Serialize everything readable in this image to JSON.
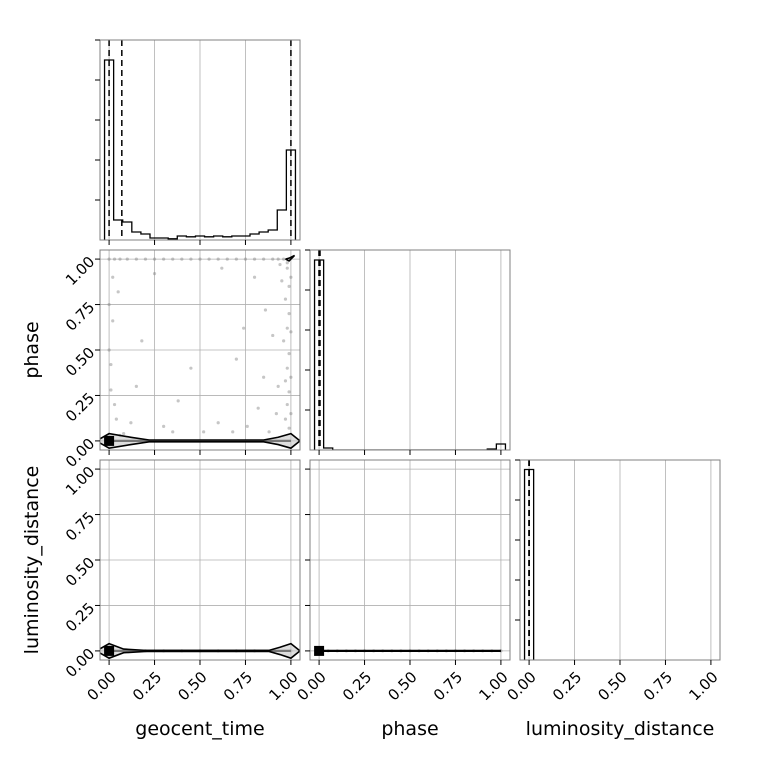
{
  "figure": {
    "style": {
      "grid": true,
      "panel_border_color": "#808080",
      "grid_color": "#b0b0b0",
      "hist_color": "#000000",
      "scatter_color": "#808080",
      "contour_fill": "#c8c8c8"
    }
  },
  "chart_data": {
    "type": "corner",
    "parameters": [
      "geocent_time",
      "phase",
      "luminosity_distance"
    ],
    "axis_labels": {
      "x": [
        "geocent_time",
        "phase",
        "luminosity_distance"
      ],
      "y": [
        "phase",
        "luminosity_distance"
      ]
    },
    "ticks": {
      "values": [
        0,
        0.25,
        0.5,
        0.75,
        1
      ],
      "labels": [
        "0.00",
        "0.25",
        "0.50",
        "0.75",
        "1.00"
      ]
    },
    "range": [
      -0.05,
      1.05
    ],
    "grid": true,
    "histograms": [
      {
        "parameter": "geocent_time",
        "bin_edges": [
          -0.025,
          0.025,
          0.075,
          0.125,
          0.175,
          0.225,
          0.275,
          0.325,
          0.375,
          0.425,
          0.475,
          0.525,
          0.575,
          0.625,
          0.675,
          0.725,
          0.775,
          0.825,
          0.875,
          0.925,
          0.975,
          1.025
        ],
        "counts": [
          45,
          5,
          4.5,
          2,
          1.5,
          0.5,
          0.5,
          0.3,
          1,
          0.8,
          1,
          0.8,
          1,
          0.8,
          1,
          1,
          1.5,
          2,
          2.5,
          7.5,
          22.5
        ],
        "ylim": [
          0,
          50
        ],
        "quantile_lines": [
          0.0,
          0.07,
          1.0
        ]
      },
      {
        "parameter": "phase",
        "bin_edges": [
          -0.025,
          0.025,
          0.075,
          0.125,
          0.175,
          0.225,
          0.275,
          0.325,
          0.375,
          0.425,
          0.475,
          0.525,
          0.575,
          0.625,
          0.675,
          0.725,
          0.775,
          0.825,
          0.875,
          0.925,
          0.975,
          1.025
        ],
        "counts": [
          95,
          1,
          0,
          0,
          0,
          0,
          0,
          0,
          0,
          0,
          0,
          0,
          0,
          0,
          0,
          0,
          0,
          0,
          0,
          0.5,
          3
        ],
        "ylim": [
          0,
          100
        ],
        "quantile_lines": [
          0.0,
          0.0,
          0.005
        ]
      },
      {
        "parameter": "luminosity_distance",
        "bin_edges": [
          -0.025,
          0.025
        ],
        "counts": [
          1
        ],
        "ylim": [
          0,
          1.05
        ],
        "quantile_lines": [
          0.0,
          0.0,
          0.0
        ]
      }
    ],
    "scatter": [
      {
        "x_parameter": "geocent_time",
        "y_parameter": "phase",
        "points": [
          [
            0.0,
            1.0
          ],
          [
            0.03,
            1.0
          ],
          [
            0.06,
            1.0
          ],
          [
            0.1,
            1.0
          ],
          [
            0.15,
            1.0
          ],
          [
            0.2,
            1.0
          ],
          [
            0.25,
            1.0
          ],
          [
            0.3,
            1.0
          ],
          [
            0.35,
            1.0
          ],
          [
            0.4,
            1.0
          ],
          [
            0.45,
            1.0
          ],
          [
            0.5,
            1.0
          ],
          [
            0.55,
            1.0
          ],
          [
            0.6,
            1.0
          ],
          [
            0.65,
            1.0
          ],
          [
            0.7,
            1.0
          ],
          [
            0.75,
            1.0
          ],
          [
            0.8,
            1.0
          ],
          [
            0.85,
            1.0
          ],
          [
            0.9,
            1.0
          ],
          [
            0.93,
            1.0
          ],
          [
            0.96,
            1.0
          ],
          [
            0.98,
            0.95
          ],
          [
            0.99,
            0.85
          ],
          [
            0.97,
            0.78
          ],
          [
            0.99,
            0.7
          ],
          [
            0.98,
            0.62
          ],
          [
            0.96,
            0.55
          ],
          [
            0.99,
            0.48
          ],
          [
            0.98,
            0.4
          ],
          [
            0.97,
            0.33
          ],
          [
            0.99,
            0.27
          ],
          [
            0.98,
            0.2
          ],
          [
            0.97,
            0.12
          ],
          [
            0.99,
            0.07
          ],
          [
            0.93,
            0.3
          ],
          [
            0.9,
            0.58
          ],
          [
            0.92,
            0.15
          ],
          [
            0.95,
            0.88
          ],
          [
            0.88,
            0.05
          ],
          [
            0.85,
            0.35
          ],
          [
            0.8,
            0.9
          ],
          [
            0.76,
            0.08
          ],
          [
            0.7,
            0.45
          ],
          [
            0.62,
            0.95
          ],
          [
            0.6,
            0.1
          ],
          [
            0.52,
            0.05
          ],
          [
            0.45,
            0.4
          ],
          [
            0.38,
            0.22
          ],
          [
            0.3,
            0.08
          ],
          [
            0.25,
            0.92
          ],
          [
            0.18,
            0.55
          ],
          [
            0.15,
            0.3
          ],
          [
            0.12,
            0.1
          ],
          [
            0.08,
            0.04
          ],
          [
            0.05,
            0.82
          ],
          [
            0.03,
            0.2
          ],
          [
            0.02,
            0.66
          ],
          [
            0.01,
            0.42
          ],
          [
            0.0,
            0.5
          ],
          [
            0.0,
            0.75
          ],
          [
            0.01,
            0.28
          ],
          [
            0.02,
            0.9
          ],
          [
            0.04,
            0.12
          ],
          [
            0.06,
            0.03
          ],
          [
            0.35,
            0.05
          ],
          [
            0.68,
            0.05
          ],
          [
            0.82,
            0.18
          ],
          [
            0.86,
            0.72
          ],
          [
            0.74,
            0.62
          ],
          [
            0.98,
            0.98
          ],
          [
            0.94,
            0.97
          ],
          [
            1.0,
            0.9
          ],
          [
            1.0,
            0.6
          ],
          [
            1.0,
            0.35
          ],
          [
            1.0,
            0.15
          ]
        ],
        "contour_lines": [
          [
            [
              -0.07,
              0.0
            ],
            [
              0.0,
              -0.04
            ],
            [
              0.12,
              -0.02
            ],
            [
              0.22,
              -0.005
            ],
            [
              0.5,
              -0.005
            ],
            [
              0.85,
              -0.005
            ],
            [
              0.93,
              -0.02
            ],
            [
              1.0,
              -0.04
            ],
            [
              1.05,
              0.0
            ],
            [
              1.0,
              0.04
            ],
            [
              0.93,
              0.02
            ],
            [
              0.85,
              0.005
            ],
            [
              0.5,
              0.005
            ],
            [
              0.22,
              0.005
            ],
            [
              0.12,
              0.02
            ],
            [
              0.0,
              0.04
            ],
            [
              -0.07,
              0.0
            ]
          ],
          [
            [
              0.97,
              1.0
            ],
            [
              0.99,
              0.99
            ],
            [
              1.01,
              1.01
            ],
            [
              1.02,
              1.02
            ],
            [
              0.99,
              1.005
            ],
            [
              0.97,
              1.0
            ]
          ]
        ]
      },
      {
        "x_parameter": "geocent_time",
        "y_parameter": "luminosity_distance",
        "points": [
          [
            0.0,
            0.0
          ],
          [
            0.1,
            0.0
          ],
          [
            0.2,
            0.0
          ],
          [
            0.3,
            0.0
          ],
          [
            0.4,
            0.0
          ],
          [
            0.5,
            0.0
          ],
          [
            0.6,
            0.0
          ],
          [
            0.7,
            0.0
          ],
          [
            0.8,
            0.0
          ],
          [
            0.9,
            0.0
          ],
          [
            1.0,
            0.0
          ]
        ],
        "contour_lines": [
          [
            [
              -0.07,
              0.0
            ],
            [
              0.0,
              -0.04
            ],
            [
              0.08,
              -0.01
            ],
            [
              0.2,
              -0.003
            ],
            [
              0.5,
              -0.003
            ],
            [
              0.88,
              -0.003
            ],
            [
              0.94,
              -0.02
            ],
            [
              1.0,
              -0.04
            ],
            [
              1.05,
              0.0
            ],
            [
              1.0,
              0.04
            ],
            [
              0.94,
              0.02
            ],
            [
              0.88,
              0.003
            ],
            [
              0.5,
              0.003
            ],
            [
              0.2,
              0.003
            ],
            [
              0.08,
              0.01
            ],
            [
              0.0,
              0.04
            ],
            [
              -0.07,
              0.0
            ]
          ]
        ]
      },
      {
        "x_parameter": "phase",
        "y_parameter": "luminosity_distance",
        "points": [
          [
            0.0,
            0.0
          ],
          [
            0.05,
            0.0
          ],
          [
            0.1,
            0.0
          ],
          [
            0.15,
            0.0
          ],
          [
            0.2,
            0.0
          ],
          [
            0.25,
            0.0
          ],
          [
            0.3,
            0.0
          ],
          [
            0.35,
            0.0
          ],
          [
            0.4,
            0.0
          ],
          [
            0.45,
            0.0
          ],
          [
            0.5,
            0.0
          ],
          [
            0.55,
            0.0
          ],
          [
            0.6,
            0.0
          ],
          [
            0.65,
            0.0
          ],
          [
            0.7,
            0.0
          ],
          [
            0.75,
            0.0
          ],
          [
            0.8,
            0.0
          ],
          [
            0.85,
            0.0
          ],
          [
            0.9,
            0.0
          ],
          [
            0.95,
            0.0
          ],
          [
            1.0,
            0.0
          ]
        ],
        "contour_lines": []
      }
    ]
  }
}
